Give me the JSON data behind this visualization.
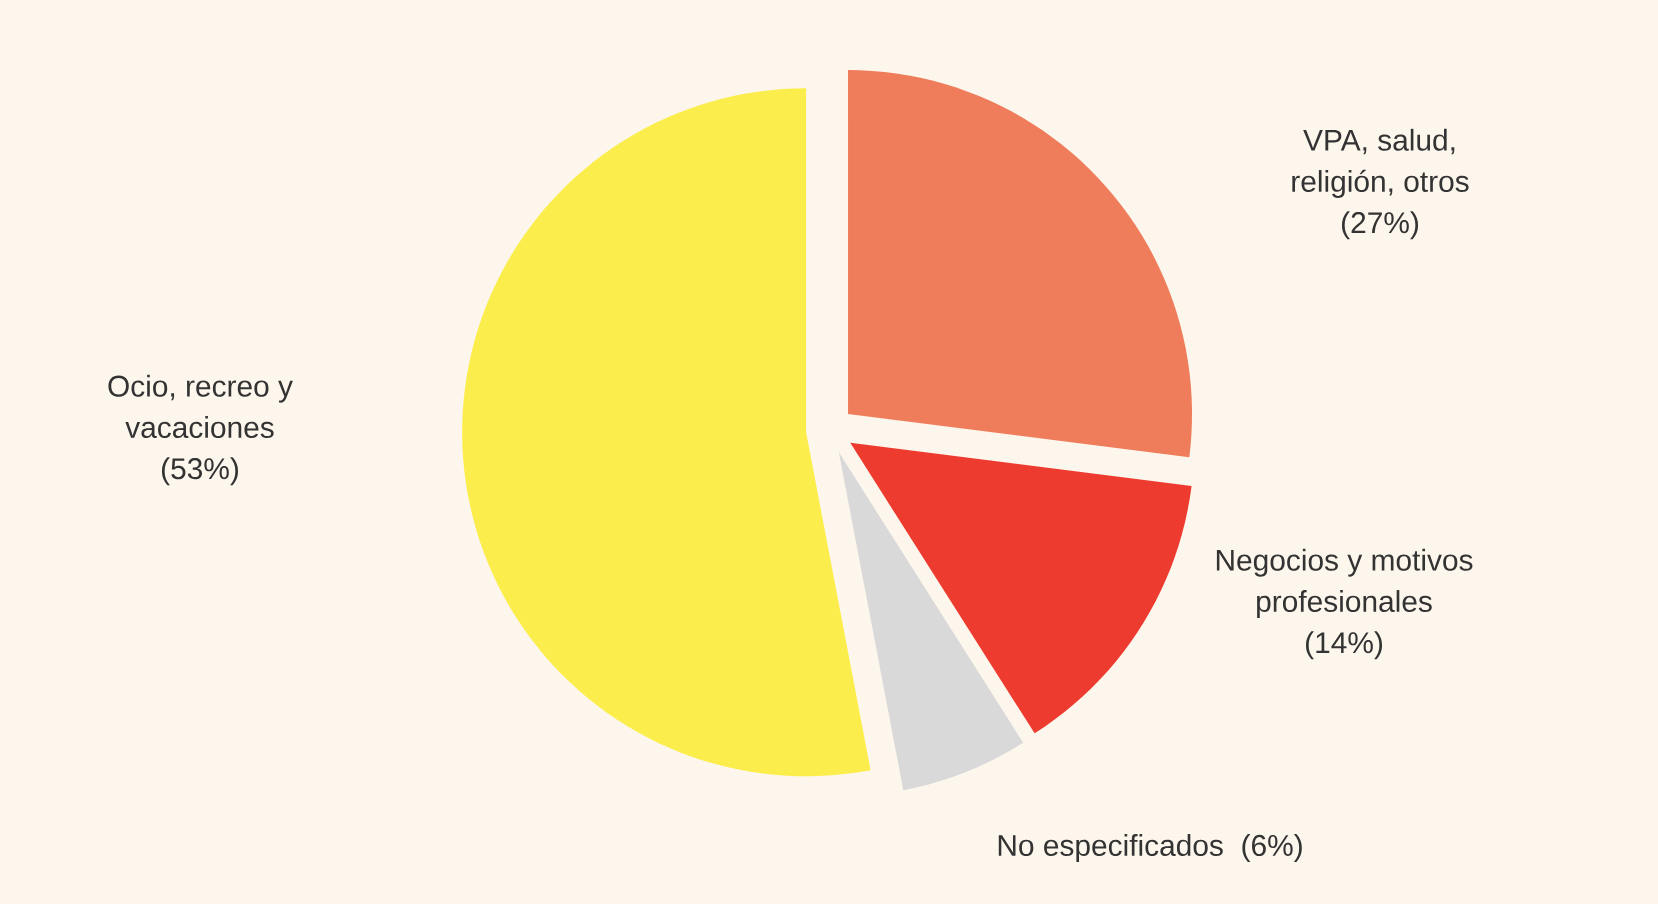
{
  "chart_data": {
    "type": "pie",
    "categories": [
      "VPA, salud, religión, otros",
      "Negocios y motivos profesionales",
      "No especificados",
      "Ocio, recreo y vacaciones"
    ],
    "values": [
      27,
      14,
      6,
      53
    ],
    "value_labels": [
      "(27%)",
      "(14%)",
      "(6%)",
      "(53%)"
    ],
    "colors": [
      "#ef7d5b",
      "#ee3b30",
      "#d9d9d9",
      "#fbee4c"
    ]
  }
}
